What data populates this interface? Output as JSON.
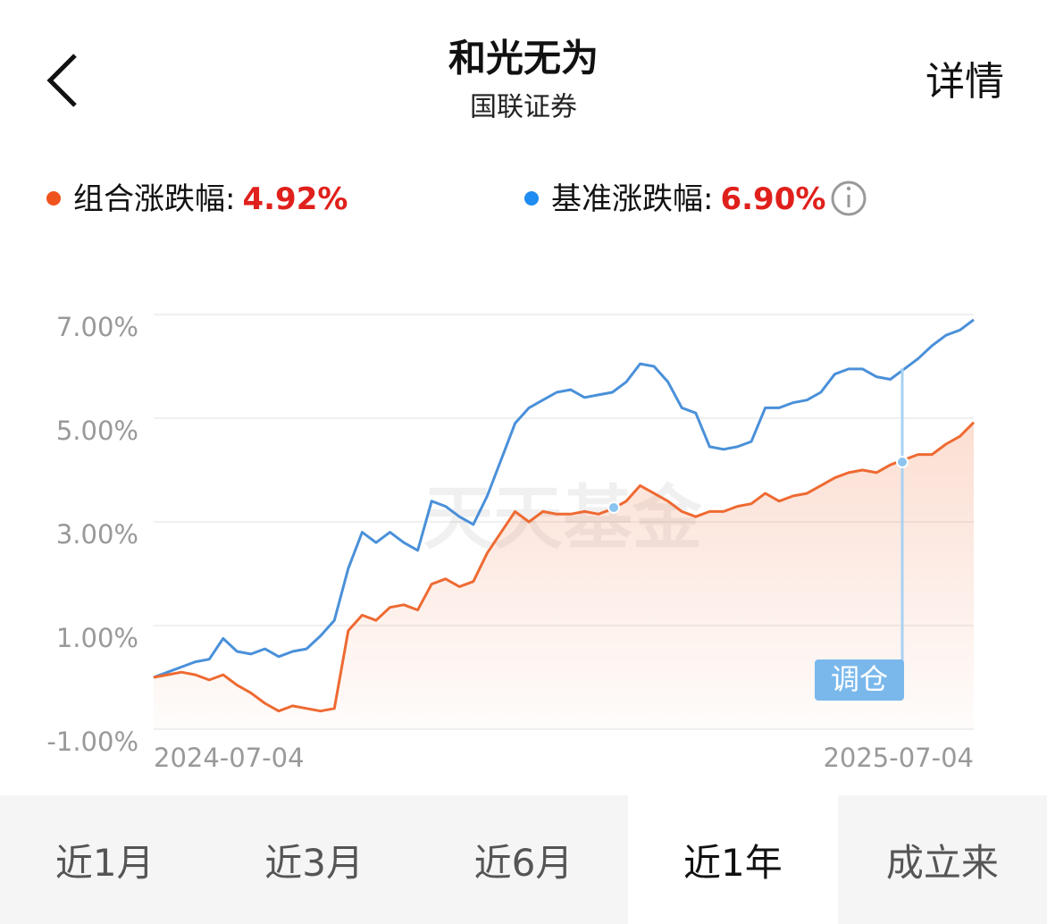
{
  "header": {
    "title": "和光无为",
    "subtitle": "国联证券",
    "detail": "详情"
  },
  "chart_data": {
    "type": "line",
    "watermark": "天天基金",
    "annotation": "调仓",
    "categories": [
      "2024-07-04",
      null,
      null,
      null,
      null,
      null,
      null,
      null,
      null,
      null,
      null,
      null,
      null,
      null,
      null,
      null,
      null,
      null,
      null,
      null,
      null,
      null,
      null,
      null,
      null,
      null,
      null,
      null,
      null,
      null,
      null,
      null,
      null,
      null,
      null,
      null,
      null,
      null,
      null,
      null,
      null,
      null,
      null,
      null,
      null,
      null,
      null,
      null,
      null,
      null,
      null,
      null,
      null,
      null,
      null,
      null,
      null,
      null,
      null,
      "2025-07-04"
    ],
    "series": [
      {
        "name": "组合涨跌幅:",
        "change": "4.92%",
        "color": "#ee6a32",
        "values": [
          0,
          0.05,
          0.1,
          0.05,
          -0.05,
          0.05,
          -0.15,
          -0.3,
          -0.5,
          -0.65,
          -0.55,
          -0.6,
          -0.65,
          -0.6,
          0.9,
          1.2,
          1.1,
          1.35,
          1.4,
          1.3,
          1.8,
          1.9,
          1.75,
          1.85,
          2.4,
          2.8,
          3.2,
          3.0,
          3.2,
          3.15,
          3.15,
          3.2,
          3.15,
          3.25,
          3.4,
          3.7,
          3.55,
          3.4,
          3.2,
          3.1,
          3.2,
          3.2,
          3.3,
          3.35,
          3.55,
          3.4,
          3.5,
          3.55,
          3.7,
          3.85,
          3.95,
          4.0,
          3.95,
          4.1,
          4.2,
          4.3,
          4.3,
          4.5,
          4.65,
          4.92
        ]
      },
      {
        "name": "基准涨跌幅:",
        "change": "6.90%",
        "color": "#4a90d9",
        "values": [
          0,
          0.1,
          0.2,
          0.3,
          0.35,
          0.75,
          0.5,
          0.45,
          0.55,
          0.4,
          0.5,
          0.55,
          0.8,
          1.1,
          2.1,
          2.8,
          2.6,
          2.8,
          2.6,
          2.45,
          3.4,
          3.3,
          3.1,
          2.95,
          3.5,
          4.2,
          4.9,
          5.2,
          5.35,
          5.5,
          5.55,
          5.4,
          5.45,
          5.5,
          5.7,
          6.05,
          6.0,
          5.7,
          5.2,
          5.1,
          4.45,
          4.4,
          4.45,
          4.55,
          5.2,
          5.2,
          5.3,
          5.35,
          5.5,
          5.85,
          5.95,
          5.95,
          5.8,
          5.75,
          5.95,
          6.15,
          6.4,
          6.6,
          6.7,
          6.9
        ]
      }
    ],
    "ylim": [
      -1,
      7
    ],
    "yticks": [
      {
        "value": -1,
        "label": "-1.00%"
      },
      {
        "value": 1,
        "label": "1.00%"
      },
      {
        "value": 3,
        "label": "3.00%"
      },
      {
        "value": 5,
        "label": "5.00%"
      },
      {
        "value": 7,
        "label": "7.00%"
      }
    ],
    "grid": true
  },
  "tabs": {
    "items": [
      "近1月",
      "近3月",
      "近6月",
      "近1年",
      "成立来"
    ],
    "active": 3
  }
}
